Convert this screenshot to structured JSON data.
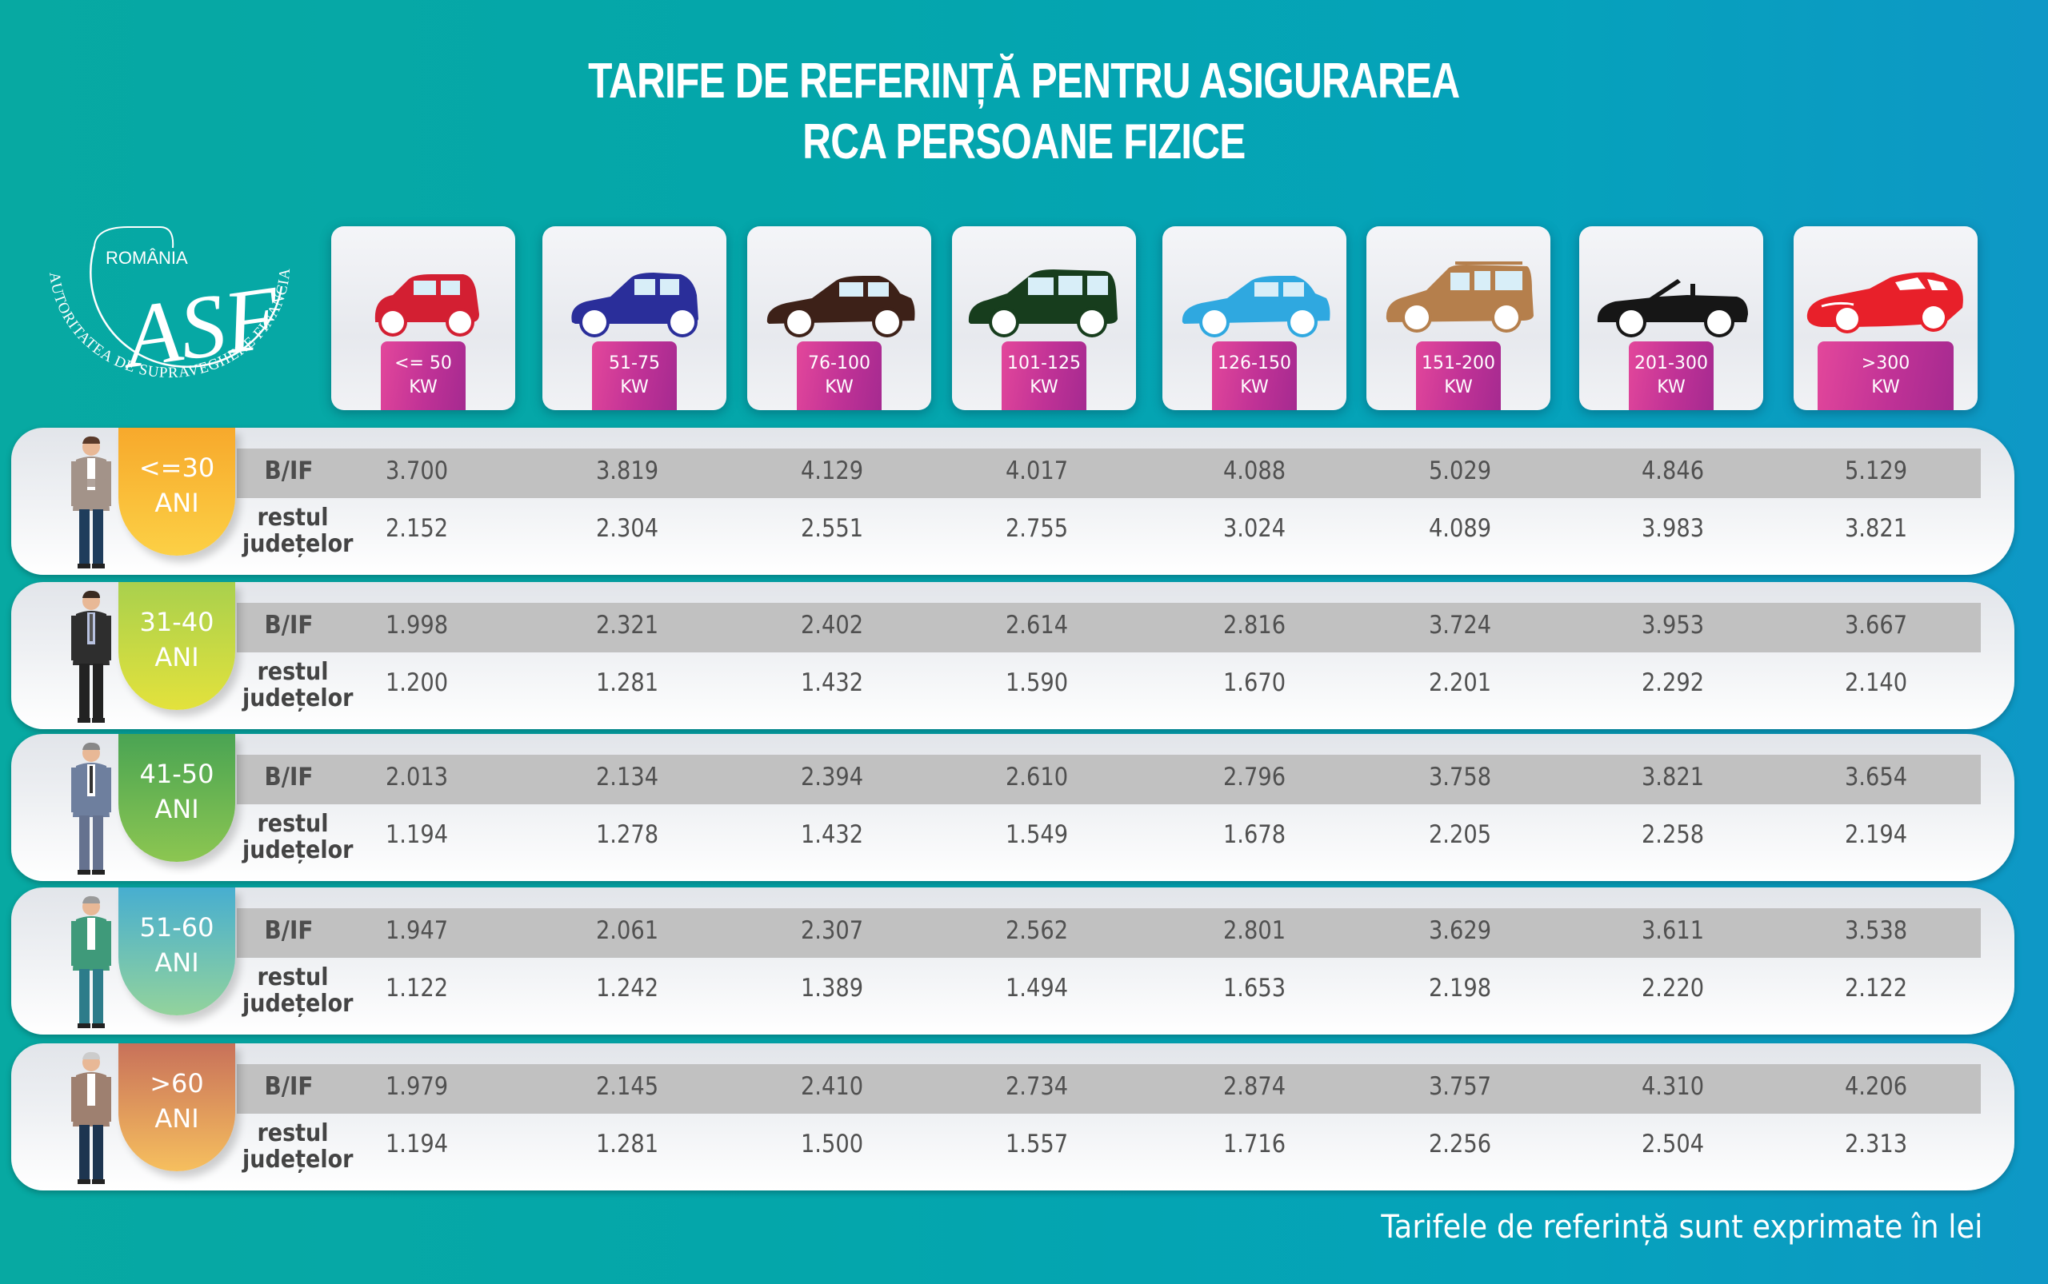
{
  "header": {
    "title_line1": "TARIFE DE REFERINȚĂ PENTRU ASIGURAREA",
    "title_line2": "RCA PERSOANE FIZICE"
  },
  "logo": {
    "top_text": "ROMÂNIA",
    "monogram": "ASF",
    "arc_text": "AUTORITATEA DE SUPRAVEGHERE FINANCIARĂ"
  },
  "columns": [
    {
      "line1": "<= 50",
      "line2": "KW",
      "car_icon": "city-car-icon",
      "car_color": "#d31f32"
    },
    {
      "line1": "51-75",
      "line2": "KW",
      "car_icon": "hatchback-icon",
      "car_color": "#2a2e9a"
    },
    {
      "line1": "76-100",
      "line2": "KW",
      "car_icon": "sedan-icon",
      "car_color": "#3d2118"
    },
    {
      "line1": "101-125",
      "line2": "KW",
      "car_icon": "minivan-icon",
      "car_color": "#173d1d"
    },
    {
      "line1": "126-150",
      "line2": "KW",
      "car_icon": "sedan-icon",
      "car_color": "#2fa8e0"
    },
    {
      "line1": "151-200",
      "line2": "KW",
      "car_icon": "suv-icon",
      "car_color": "#b57f4c"
    },
    {
      "line1": "201-300",
      "line2": "KW",
      "car_icon": "convertible-icon",
      "car_color": "#161616"
    },
    {
      "line1": ">300",
      "line2": "KW",
      "car_icon": "sports-car-icon",
      "car_color": "#e8202a"
    }
  ],
  "row_labels": {
    "bif": "B/IF",
    "rest_line1": "restul",
    "rest_line2": "județelor"
  },
  "groups": [
    {
      "age": "<=30",
      "unit": "ANI",
      "color_top": "#f7a92c",
      "color_bottom": "#fcd045",
      "bif": [
        "3.700",
        "3.819",
        "4.129",
        "4.017",
        "4.088",
        "5.029",
        "4.846",
        "5.129"
      ],
      "rest": [
        "2.152",
        "2.304",
        "2.551",
        "2.755",
        "3.024",
        "4.089",
        "3.983",
        "3.821"
      ]
    },
    {
      "age": "31-40",
      "unit": "ANI",
      "color_top": "#a9d04d",
      "color_bottom": "#e3e23c",
      "bif": [
        "1.998",
        "2.321",
        "2.402",
        "2.614",
        "2.816",
        "3.724",
        "3.953",
        "3.667"
      ],
      "rest": [
        "1.200",
        "1.281",
        "1.432",
        "1.590",
        "1.670",
        "2.201",
        "2.292",
        "2.140"
      ]
    },
    {
      "age": "41-50",
      "unit": "ANI",
      "color_top": "#4aa453",
      "color_bottom": "#8cc651",
      "bif": [
        "2.013",
        "2.134",
        "2.394",
        "2.610",
        "2.796",
        "3.758",
        "3.821",
        "3.654"
      ],
      "rest": [
        "1.194",
        "1.278",
        "1.432",
        "1.549",
        "1.678",
        "2.205",
        "2.258",
        "2.194"
      ]
    },
    {
      "age": "51-60",
      "unit": "ANI",
      "color_top": "#47aed0",
      "color_bottom": "#93d39c",
      "bif": [
        "1.947",
        "2.061",
        "2.307",
        "2.562",
        "2.801",
        "3.629",
        "3.611",
        "3.538"
      ],
      "rest": [
        "1.122",
        "1.242",
        "1.389",
        "1.494",
        "1.653",
        "2.198",
        "2.220",
        "2.122"
      ]
    },
    {
      "age": ">60",
      "unit": "ANI",
      "color_top": "#c8715a",
      "color_bottom": "#f6bf5e",
      "bif": [
        "1.979",
        "2.145",
        "2.410",
        "2.734",
        "2.874",
        "3.757",
        "4.310",
        "4.206"
      ],
      "rest": [
        "1.194",
        "1.281",
        "1.500",
        "1.557",
        "1.716",
        "2.256",
        "2.504",
        "2.313"
      ]
    }
  ],
  "footer": {
    "note": "Tarifele de referință sunt exprimate în lei"
  },
  "colors": {
    "bg_left": "#07a9a2",
    "bg_right": "#0e98c6",
    "kw_badge": "#c03296",
    "band": "#c1c1c1"
  },
  "chart_data": {
    "type": "table",
    "title": "TARIFE DE REFERINȚĂ PENTRU ASIGURAREA RCA PERSOANE FIZICE",
    "unit": "lei",
    "columns": [
      "<= 50 KW",
      "51-75 KW",
      "76-100 KW",
      "101-125 KW",
      "126-150 KW",
      "151-200 KW",
      "201-300 KW",
      ">300 KW"
    ],
    "rows": [
      {
        "age": "<=30 ANI",
        "region": "B/IF",
        "values": [
          3700,
          3819,
          4129,
          4017,
          4088,
          5029,
          4846,
          5129
        ]
      },
      {
        "age": "<=30 ANI",
        "region": "restul județelor",
        "values": [
          2152,
          2304,
          2551,
          2755,
          3024,
          4089,
          3983,
          3821
        ]
      },
      {
        "age": "31-40 ANI",
        "region": "B/IF",
        "values": [
          1998,
          2321,
          2402,
          2614,
          2816,
          3724,
          3953,
          3667
        ]
      },
      {
        "age": "31-40 ANI",
        "region": "restul județelor",
        "values": [
          1200,
          1281,
          1432,
          1590,
          1670,
          2201,
          2292,
          2140
        ]
      },
      {
        "age": "41-50 ANI",
        "region": "B/IF",
        "values": [
          2013,
          2134,
          2394,
          2610,
          2796,
          3758,
          3821,
          3654
        ]
      },
      {
        "age": "41-50 ANI",
        "region": "restul județelor",
        "values": [
          1194,
          1278,
          1432,
          1549,
          1678,
          2205,
          2258,
          2194
        ]
      },
      {
        "age": "51-60 ANI",
        "region": "B/IF",
        "values": [
          1947,
          2061,
          2307,
          2562,
          2801,
          3629,
          3611,
          3538
        ]
      },
      {
        "age": "51-60 ANI",
        "region": "restul județelor",
        "values": [
          1122,
          1242,
          1389,
          1494,
          1653,
          2198,
          2220,
          2122
        ]
      },
      {
        "age": ">60 ANI",
        "region": "B/IF",
        "values": [
          1979,
          2145,
          2410,
          2734,
          2874,
          3757,
          4310,
          4206
        ]
      },
      {
        "age": ">60 ANI",
        "region": "restul județelor",
        "values": [
          1194,
          1281,
          1500,
          1557,
          1716,
          2256,
          2504,
          2313
        ]
      }
    ],
    "footnote": "Tarifele de referință sunt exprimate în lei"
  }
}
